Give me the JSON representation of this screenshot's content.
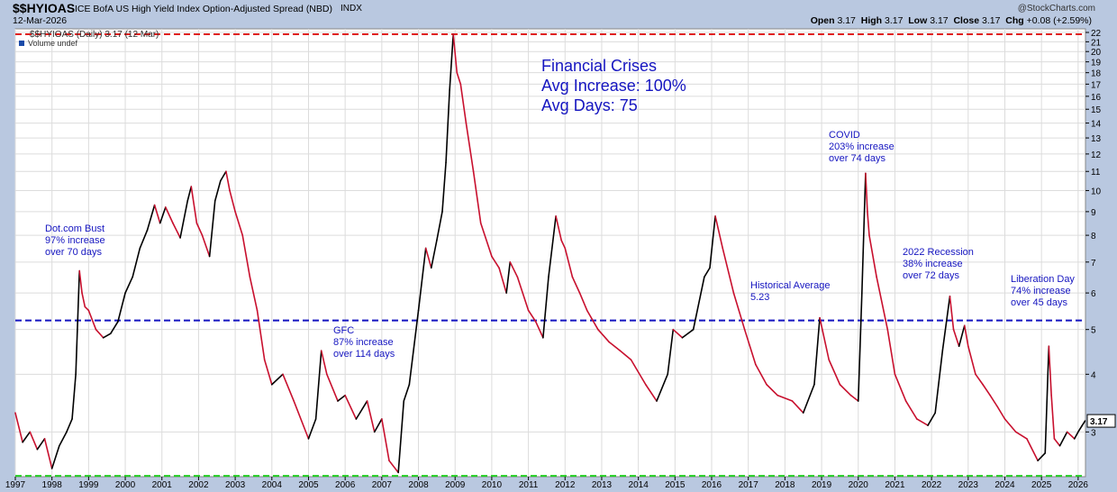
{
  "header": {
    "ticker": "$$HYIOAS",
    "description": "ICE BofA US High Yield Index Option-Adjusted Spread (NBD)",
    "exchange": "INDX",
    "date": "12-Mar-2026",
    "watermark": "@StockCharts.com",
    "open_label": "Open",
    "open": "3.17",
    "high_label": "High",
    "high": "3.17",
    "low_label": "Low",
    "low": "3.17",
    "close_label": "Close",
    "close": "3.17",
    "chg_label": "Chg",
    "chg": "+0.08 (+2.59%)"
  },
  "colors": {
    "background": "#ffffff",
    "frame": "#b9c8e0",
    "price_line": "#c8102e",
    "rising_line": "#000000",
    "upper_ref": "#e02020",
    "lower_ref": "#22cc22",
    "average_ref": "#1515c0",
    "annotation": "#1515c0"
  },
  "chart_data": {
    "type": "line",
    "scale": "log",
    "legend": [
      "$$HYIOAS (Daily) 3.17 (12 Mar)",
      "Volume undef"
    ],
    "y_ticks": [
      3,
      4,
      5,
      6,
      7,
      8,
      9,
      10,
      11,
      12,
      13,
      14,
      15,
      16,
      17,
      18,
      19,
      20,
      21,
      22
    ],
    "x_ticks": [
      "1997",
      "1998",
      "1999",
      "2000",
      "2001",
      "2002",
      "2003",
      "2004",
      "2005",
      "2006",
      "2007",
      "2008",
      "2009",
      "2010",
      "2011",
      "2012",
      "2013",
      "2014",
      "2015",
      "2016",
      "2017",
      "2018",
      "2019",
      "2020",
      "2021",
      "2022",
      "2023",
      "2024",
      "2025",
      "2026"
    ],
    "ylim": [
      2.4,
      22.4
    ],
    "xlim": [
      1997.0,
      2026.2
    ],
    "last_value_label": "3.17",
    "reference_lines": [
      {
        "name": "peak",
        "value": 21.8,
        "style": "dashed",
        "color": "#e02020"
      },
      {
        "name": "low",
        "value": 2.41,
        "style": "dashed",
        "color": "#22cc22"
      },
      {
        "name": "historical-average",
        "value": 5.23,
        "style": "dashed",
        "color": "#1515c0"
      }
    ],
    "series": [
      {
        "x": [
          1997.0,
          1997.2,
          1997.4,
          1997.6,
          1997.8,
          1998.0,
          1998.2,
          1998.4,
          1998.55,
          1998.65,
          1998.75,
          1998.82,
          1998.9,
          1999.0,
          1999.2,
          1999.4,
          1999.6,
          1999.8,
          2000.0,
          2000.2,
          2000.4,
          2000.6,
          2000.8,
          2000.95,
          2001.1,
          2001.3,
          2001.5,
          2001.7,
          2001.8,
          2001.95,
          2002.1,
          2002.3,
          2002.45,
          2002.6,
          2002.75,
          2002.85,
          2003.0,
          2003.2,
          2003.4,
          2003.6,
          2003.8,
          2004.0,
          2004.3,
          2004.6,
          2005.0,
          2005.2,
          2005.35,
          2005.5,
          2005.8,
          2006.0,
          2006.3,
          2006.6,
          2006.8,
          2007.0,
          2007.2,
          2007.45,
          2007.6,
          2007.75,
          2008.0,
          2008.2,
          2008.35,
          2008.5,
          2008.65,
          2008.75,
          2008.85,
          2008.95,
          2009.05,
          2009.15,
          2009.3,
          2009.5,
          2009.7,
          2010.0,
          2010.2,
          2010.4,
          2010.5,
          2010.7,
          2011.0,
          2011.2,
          2011.4,
          2011.55,
          2011.75,
          2011.9,
          2012.0,
          2012.2,
          2012.4,
          2012.6,
          2012.9,
          2013.2,
          2013.5,
          2013.8,
          2014.2,
          2014.5,
          2014.8,
          2014.95,
          2015.2,
          2015.5,
          2015.8,
          2015.95,
          2016.1,
          2016.3,
          2016.6,
          2016.9,
          2017.2,
          2017.5,
          2017.8,
          2018.2,
          2018.5,
          2018.8,
          2018.95,
          2019.2,
          2019.5,
          2019.8,
          2020.0,
          2020.1,
          2020.2,
          2020.25,
          2020.3,
          2020.5,
          2020.8,
          2021.0,
          2021.3,
          2021.6,
          2021.9,
          2022.1,
          2022.3,
          2022.5,
          2022.6,
          2022.75,
          2022.9,
          2023.0,
          2023.2,
          2023.4,
          2023.6,
          2023.8,
          2024.0,
          2024.3,
          2024.6,
          2024.9,
          2025.1,
          2025.2,
          2025.27,
          2025.35,
          2025.5,
          2025.7,
          2025.9,
          2026.0,
          2026.1,
          2026.19
        ],
        "y": [
          3.3,
          2.85,
          3.0,
          2.75,
          2.9,
          2.5,
          2.8,
          3.0,
          3.2,
          4.0,
          6.7,
          6.0,
          5.6,
          5.5,
          5.0,
          4.8,
          4.9,
          5.2,
          6.0,
          6.5,
          7.5,
          8.2,
          9.3,
          8.5,
          9.2,
          8.5,
          7.9,
          9.5,
          10.2,
          8.5,
          8.0,
          7.2,
          9.5,
          10.5,
          11.0,
          10.0,
          9.0,
          8.0,
          6.5,
          5.5,
          4.3,
          3.8,
          4.0,
          3.5,
          2.9,
          3.2,
          4.5,
          4.0,
          3.5,
          3.6,
          3.2,
          3.5,
          3.0,
          3.2,
          2.6,
          2.45,
          3.5,
          3.8,
          5.5,
          7.5,
          6.8,
          7.8,
          9.0,
          11.5,
          16.5,
          21.8,
          18.0,
          17.0,
          14.0,
          11.0,
          8.5,
          7.2,
          6.8,
          6.0,
          7.0,
          6.5,
          5.5,
          5.2,
          4.8,
          6.5,
          8.8,
          7.8,
          7.5,
          6.5,
          6.0,
          5.5,
          5.0,
          4.7,
          4.5,
          4.3,
          3.8,
          3.5,
          4.0,
          5.0,
          4.8,
          5.0,
          6.5,
          6.8,
          8.8,
          7.5,
          6.0,
          5.0,
          4.2,
          3.8,
          3.6,
          3.5,
          3.3,
          3.8,
          5.3,
          4.3,
          3.8,
          3.6,
          3.5,
          6.0,
          10.9,
          9.0,
          8.0,
          6.5,
          5.0,
          4.0,
          3.5,
          3.2,
          3.1,
          3.3,
          4.5,
          5.9,
          5.0,
          4.6,
          5.1,
          4.6,
          4.0,
          3.8,
          3.6,
          3.4,
          3.2,
          3.0,
          2.9,
          2.6,
          2.7,
          4.6,
          3.6,
          2.9,
          2.8,
          3.0,
          2.9,
          3.0,
          3.09,
          3.17
        ]
      }
    ]
  },
  "annotations": {
    "title_box": [
      "Financial Crises",
      "Avg Increase:  100%",
      "Avg Days:  75"
    ],
    "dotcom": [
      "Dot.com Bust",
      "97% increase",
      "over 70 days"
    ],
    "gfc": [
      "GFC",
      "87% increase",
      "over 114 days"
    ],
    "covid": [
      "COVID",
      "203% increase",
      "over 74 days"
    ],
    "recession_2022": [
      "2022 Recession",
      "38% increase",
      "over 72 days"
    ],
    "liberation": [
      "Liberation Day",
      "74% increase",
      "over 45 days"
    ],
    "historical": [
      "Historical Average",
      "5.23"
    ]
  }
}
